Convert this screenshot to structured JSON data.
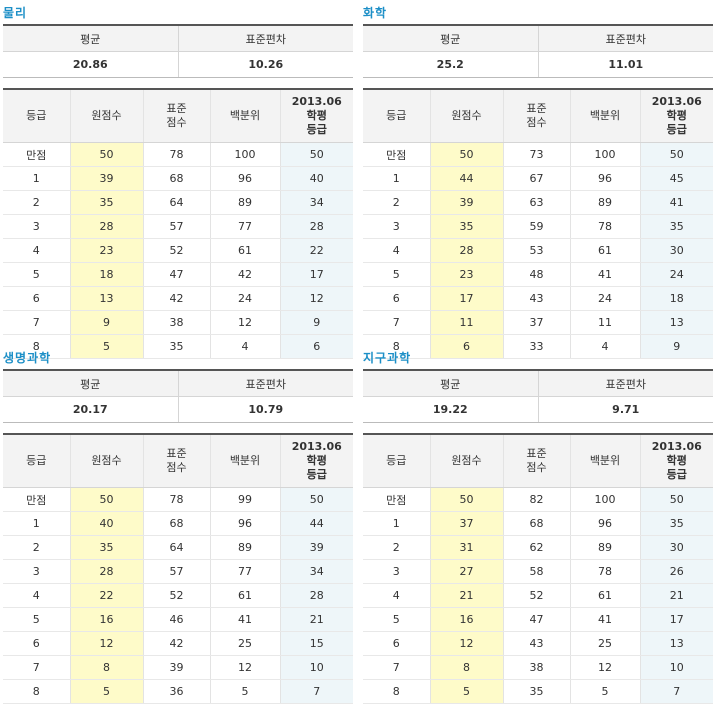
{
  "headers": {
    "mean": "평균",
    "sd": "표준편차",
    "grade": "등급",
    "raw": "원점수",
    "std_1": "표준",
    "std_2": "점수",
    "pct": "백분위",
    "mock_1": "2013.06",
    "mock_2": "학평",
    "mock_3": "등급"
  },
  "panels": [
    {
      "title": "물리",
      "mean": "20.86",
      "sd": "10.26",
      "rows": [
        [
          "만점",
          "50",
          "78",
          "100",
          "50"
        ],
        [
          "1",
          "39",
          "68",
          "96",
          "40"
        ],
        [
          "2",
          "35",
          "64",
          "89",
          "34"
        ],
        [
          "3",
          "28",
          "57",
          "77",
          "28"
        ],
        [
          "4",
          "23",
          "52",
          "61",
          "22"
        ],
        [
          "5",
          "18",
          "47",
          "42",
          "17"
        ],
        [
          "6",
          "13",
          "42",
          "24",
          "12"
        ],
        [
          "7",
          "9",
          "38",
          "12",
          "9"
        ],
        [
          "8",
          "5",
          "35",
          "4",
          "6"
        ]
      ]
    },
    {
      "title": "화학",
      "mean": "25.2",
      "sd": "11.01",
      "rows": [
        [
          "만점",
          "50",
          "73",
          "100",
          "50"
        ],
        [
          "1",
          "44",
          "67",
          "96",
          "45"
        ],
        [
          "2",
          "39",
          "63",
          "89",
          "41"
        ],
        [
          "3",
          "35",
          "59",
          "78",
          "35"
        ],
        [
          "4",
          "28",
          "53",
          "61",
          "30"
        ],
        [
          "5",
          "23",
          "48",
          "41",
          "24"
        ],
        [
          "6",
          "17",
          "43",
          "24",
          "18"
        ],
        [
          "7",
          "11",
          "37",
          "11",
          "13"
        ],
        [
          "8",
          "6",
          "33",
          "4",
          "9"
        ]
      ]
    },
    {
      "title": "생명과학",
      "mean": "20.17",
      "sd": "10.79",
      "rows": [
        [
          "만점",
          "50",
          "78",
          "99",
          "50"
        ],
        [
          "1",
          "40",
          "68",
          "96",
          "44"
        ],
        [
          "2",
          "35",
          "64",
          "89",
          "39"
        ],
        [
          "3",
          "28",
          "57",
          "77",
          "34"
        ],
        [
          "4",
          "22",
          "52",
          "61",
          "28"
        ],
        [
          "5",
          "16",
          "46",
          "41",
          "21"
        ],
        [
          "6",
          "12",
          "42",
          "25",
          "15"
        ],
        [
          "7",
          "8",
          "39",
          "12",
          "10"
        ],
        [
          "8",
          "5",
          "36",
          "5",
          "7"
        ]
      ]
    },
    {
      "title": "지구과학",
      "mean": "19.22",
      "sd": "9.71",
      "rows": [
        [
          "만점",
          "50",
          "82",
          "100",
          "50"
        ],
        [
          "1",
          "37",
          "68",
          "96",
          "35"
        ],
        [
          "2",
          "31",
          "62",
          "89",
          "30"
        ],
        [
          "3",
          "27",
          "58",
          "78",
          "26"
        ],
        [
          "4",
          "21",
          "52",
          "61",
          "21"
        ],
        [
          "5",
          "16",
          "47",
          "41",
          "17"
        ],
        [
          "6",
          "12",
          "43",
          "25",
          "13"
        ],
        [
          "7",
          "8",
          "38",
          "12",
          "10"
        ],
        [
          "8",
          "5",
          "35",
          "5",
          "7"
        ]
      ]
    }
  ]
}
